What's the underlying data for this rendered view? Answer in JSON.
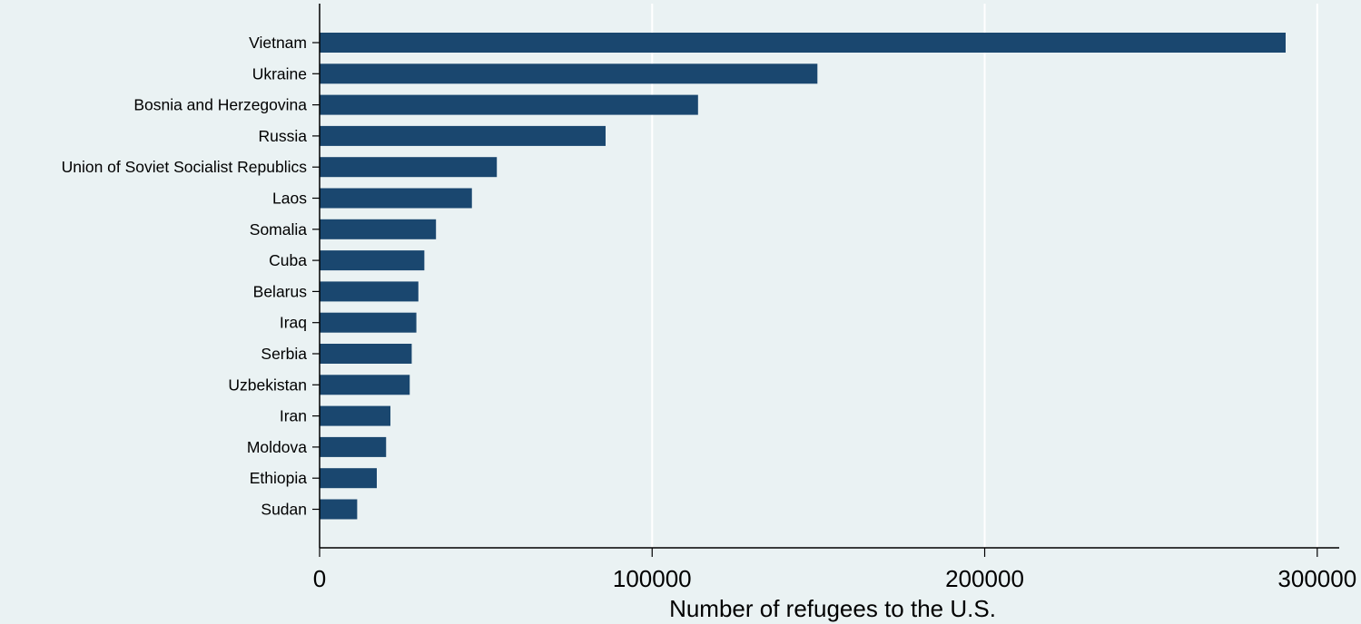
{
  "chart_data": {
    "type": "bar",
    "orientation": "horizontal",
    "title": "",
    "xlabel": "Number of refugees to the U.S.",
    "ylabel": "",
    "xlim": [
      0,
      310000
    ],
    "x_ticks": [
      0,
      100000,
      200000,
      300000
    ],
    "x_tick_labels": [
      "0",
      "100000",
      "200000",
      "300000"
    ],
    "grid": "vertical",
    "legend": "none",
    "categories": [
      "Vietnam",
      "Ukraine",
      "Bosnia and Herzegovina",
      "Russia",
      "Union of Soviet Socialist Republics",
      "Laos",
      "Somalia",
      "Cuba",
      "Belarus",
      "Iraq",
      "Serbia",
      "Uzbekistan",
      "Iran",
      "Moldova",
      "Ethiopia",
      "Sudan"
    ],
    "values": [
      290500,
      149700,
      113800,
      86000,
      53300,
      45800,
      35000,
      31500,
      29700,
      29100,
      27700,
      27100,
      21300,
      20000,
      17200,
      11300
    ],
    "colors": {
      "background": "#eaf2f3",
      "bar": "#1a476f",
      "grid": "#ffffff",
      "axis": "#000000"
    }
  }
}
